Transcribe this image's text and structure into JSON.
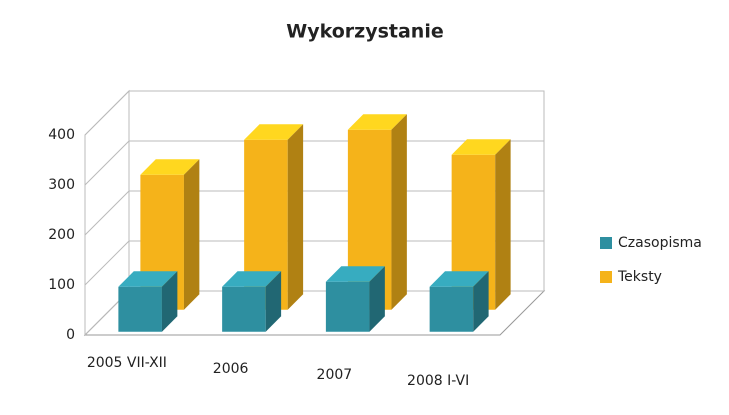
{
  "chart_data": {
    "type": "bar3d",
    "title": "Wykorzystanie",
    "categories": [
      "2005 VII-XII",
      "2006",
      "2007",
      "2008 I-VI"
    ],
    "series": [
      {
        "name": "Czasopisma",
        "color": "#2e8fa0",
        "values": [
          90,
          90,
          100,
          90
        ]
      },
      {
        "name": "Teksty",
        "color": "#f5b31a",
        "values": [
          270,
          340,
          360,
          310
        ]
      }
    ],
    "ylim": [
      0,
      400
    ],
    "yticks": [
      0,
      100,
      200,
      300,
      400
    ],
    "grid": true,
    "legend": "right"
  }
}
